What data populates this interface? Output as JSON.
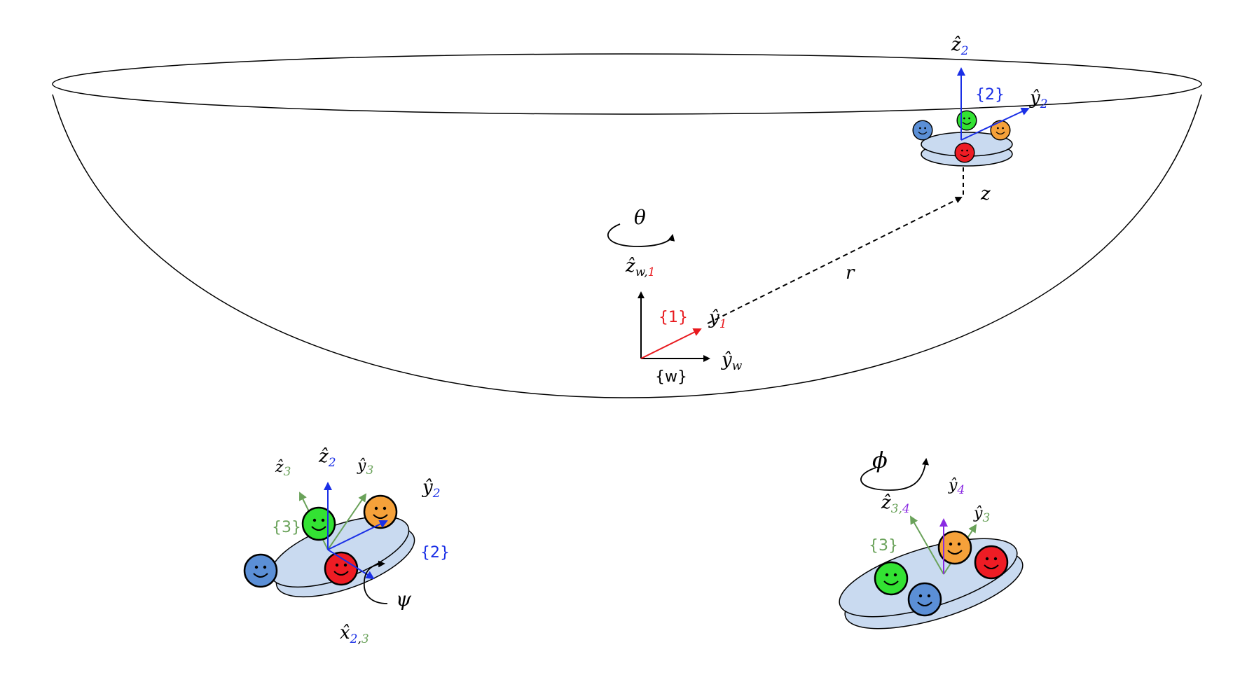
{
  "colors": {
    "black": "#000000",
    "red": "#e8191e",
    "blue": "#1a2fe6",
    "green": "#6aa25a",
    "purple": "#8a2be2",
    "disk_fill": "#c9daf0",
    "face_blue": "#5b8fd6",
    "face_green": "#33e233",
    "face_orange": "#f5a13a",
    "face_red": "#ee1c24"
  },
  "labels": {
    "theta": "θ",
    "r": "r",
    "z": "z",
    "zw1_base": "ẑ",
    "zw1_sub_w": "w,",
    "zw1_sub_1": "1",
    "y1_base": "ŷ",
    "y1_sub": "1",
    "yw_base": "ŷ",
    "yw_sub": "w",
    "frame1": "{1}",
    "framew": "{w}",
    "z2_top_base": "ẑ",
    "z2_top_sub": "2",
    "y2_top_base": "ŷ",
    "y2_top_sub": "2",
    "frame2_top": "{2}",
    "z3_base": "ẑ",
    "z3_sub": "3",
    "z2_left_base": "ẑ",
    "z2_left_sub": "2",
    "y3_left_base": "ŷ",
    "y3_left_sub": "3",
    "y2_left_base": "ŷ",
    "y2_left_sub": "2",
    "frame3_left": "{3}",
    "frame2_left": "{2}",
    "psi": "ψ",
    "x23_base": "x̂",
    "x23_sub_2": "2",
    "x23_sub_comma": ",",
    "x23_sub_3": "3",
    "phi": "ϕ",
    "y4_base": "ŷ",
    "y4_sub": "4",
    "z34_base": "ẑ",
    "z34_sub_3": "3,",
    "z34_sub_4": "4",
    "y3_right_base": "ŷ",
    "y3_right_sub": "3",
    "frame3_right": "{3}"
  }
}
